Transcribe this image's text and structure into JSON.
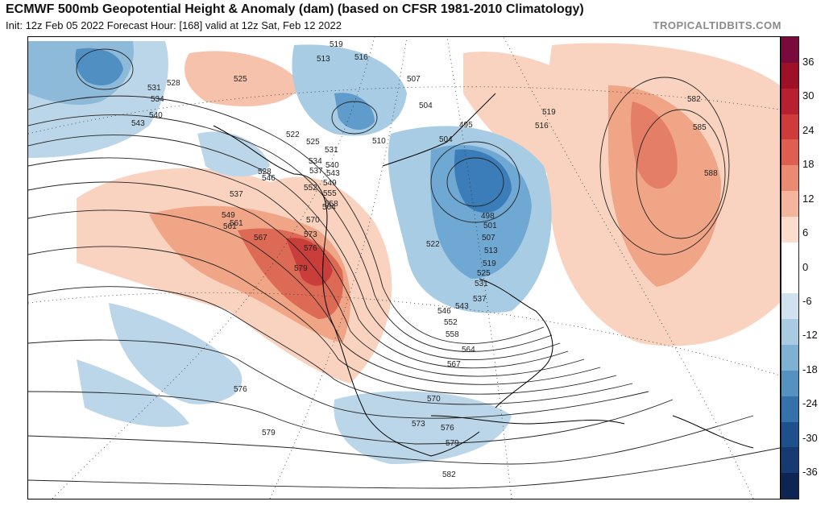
{
  "header": {
    "title": "ECMWF 500mb Geopotential Height & Anomaly (dam) (based on CFSR 1981-2010 Climatology)",
    "subtitle": "Init: 12z Feb 05 2022   Forecast Hour: [168]   valid at 12z Sat, Feb 12 2022",
    "brand": "TROPICALTIDBITS.COM"
  },
  "contour_labels": [
    "519",
    "513",
    "516",
    "507",
    "504",
    "525",
    "528",
    "531",
    "534",
    "540",
    "543",
    "537",
    "549",
    "561",
    "567",
    "573",
    "576",
    "579",
    "570",
    "522",
    "504",
    "495",
    "510",
    "498",
    "501",
    "507",
    "513",
    "519",
    "525",
    "531",
    "537",
    "543",
    "546",
    "552",
    "558",
    "564",
    "567",
    "570",
    "573",
    "576",
    "579",
    "582",
    "576",
    "579",
    "582",
    "585",
    "588",
    "516",
    "519",
    "525",
    "528",
    "531",
    "534",
    "537",
    "540",
    "543",
    "546",
    "549",
    "552",
    "555",
    "558",
    "561",
    "564",
    "522"
  ],
  "colorbar": {
    "ticks": [
      "36",
      "30",
      "24",
      "18",
      "12",
      "6",
      "0",
      "-6",
      "-12",
      "-18",
      "-24",
      "-30",
      "-36"
    ],
    "colors": [
      "#7a0a3c",
      "#9d1028",
      "#b8202f",
      "#cf3b3a",
      "#de5e4f",
      "#ea8a70",
      "#f3b59c",
      "#fbdccd",
      "#ffffff",
      "#ffffff",
      "#cfe2ee",
      "#a9cbe2",
      "#7fb1d3",
      "#5592c0",
      "#3571aa",
      "#1f508e",
      "#163a72",
      "#0d2552"
    ]
  }
}
